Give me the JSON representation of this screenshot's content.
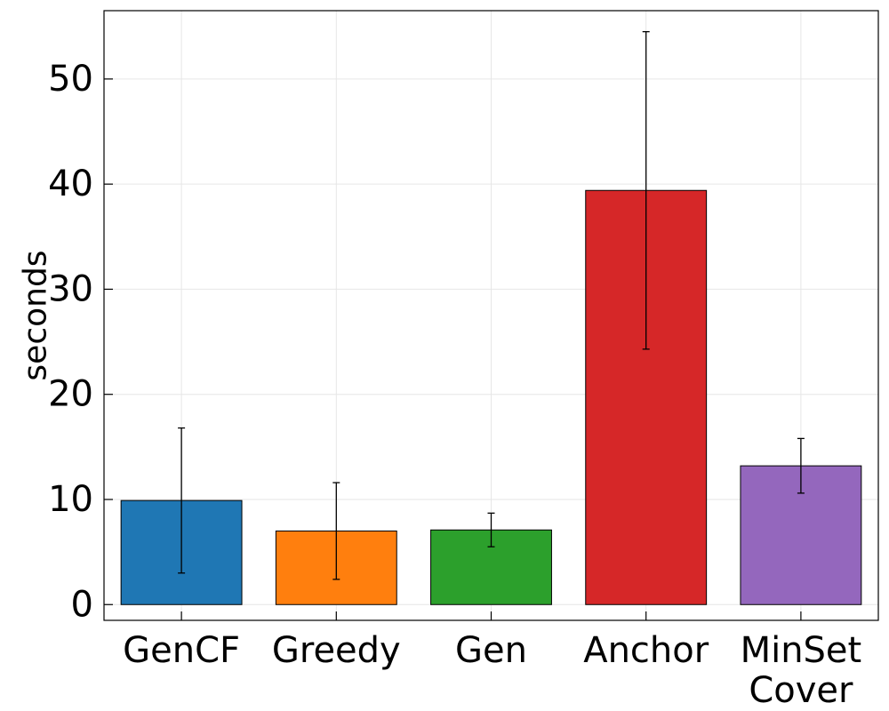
{
  "chart_data": {
    "type": "bar",
    "title": "",
    "xlabel": "",
    "ylabel": "seconds",
    "ylim": [
      -1.5,
      56.5
    ],
    "yticks": [
      0,
      10,
      20,
      30,
      40,
      50
    ],
    "grid": true,
    "categories": [
      [
        "GenCF"
      ],
      [
        "Greedy"
      ],
      [
        "Gen"
      ],
      [
        "Anchor"
      ],
      [
        "MinSet",
        "Cover"
      ]
    ],
    "values": [
      9.9,
      7.0,
      7.1,
      39.4,
      13.2
    ],
    "error_low": [
      3.0,
      2.4,
      5.5,
      24.3,
      10.6
    ],
    "error_high": [
      16.8,
      11.6,
      8.7,
      54.5,
      15.8
    ],
    "colors": [
      "#1f77b4",
      "#ff7f0e",
      "#2ca02c",
      "#d62728",
      "#9467bd"
    ]
  }
}
